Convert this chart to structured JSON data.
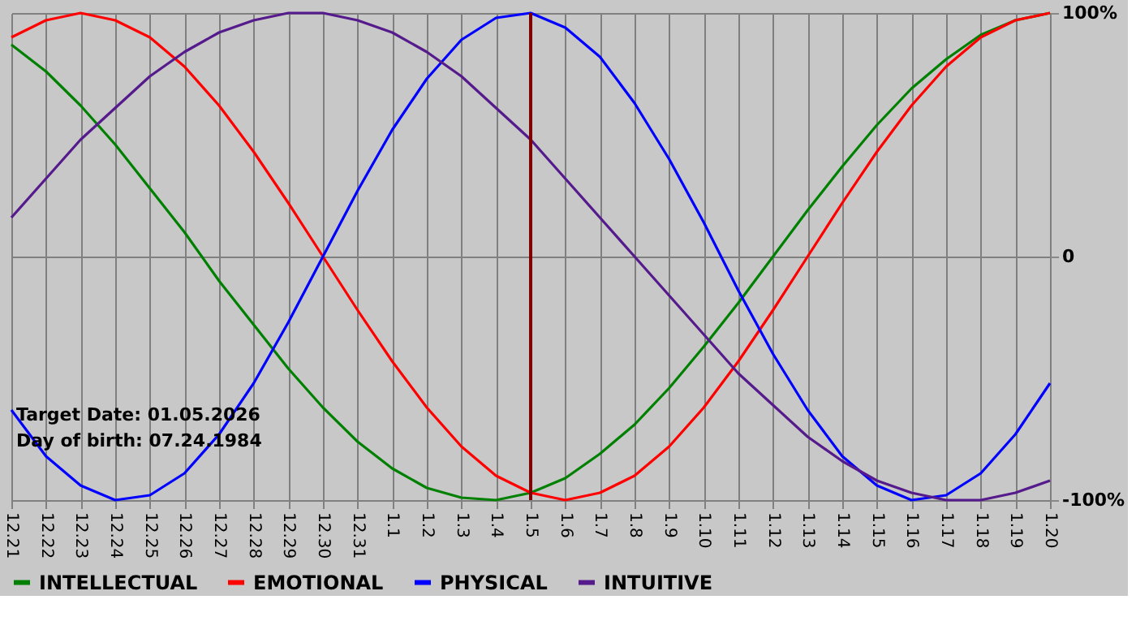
{
  "chart_data": {
    "type": "line",
    "categories": [
      "12.21",
      "12.22",
      "12.23",
      "12.24",
      "12.25",
      "12.26",
      "12.27",
      "12.28",
      "12.29",
      "12.30",
      "12.31",
      "1.1",
      "1.2",
      "1.3",
      "1.4",
      "1.5",
      "1.6",
      "1.7",
      "1.8",
      "1.9",
      "1.10",
      "1.11",
      "1.12",
      "1.13",
      "1.14",
      "1.15",
      "1.16",
      "1.17",
      "1.18",
      "1.19",
      "1.20"
    ],
    "series": [
      {
        "name": "INTELLECTUAL",
        "color": "#008000",
        "values": [
          87,
          76,
          62,
          46,
          28,
          10,
          -10,
          -28,
          -46,
          -62,
          -76,
          -87,
          -95,
          -99,
          -100,
          -97,
          -91,
          -81,
          -69,
          -54,
          -37,
          -19,
          0,
          19,
          37,
          54,
          69,
          81,
          91,
          97,
          100
        ]
      },
      {
        "name": "EMOTIONAL",
        "color": "#ff0000",
        "values": [
          90,
          97,
          100,
          97,
          90,
          78,
          62,
          43,
          22,
          0,
          -22,
          -43,
          -62,
          -78,
          -90,
          -97,
          -100,
          -97,
          -90,
          -78,
          -62,
          -43,
          -22,
          0,
          22,
          43,
          62,
          78,
          90,
          97,
          100
        ]
      },
      {
        "name": "PHYSICAL",
        "color": "#0000ff",
        "values": [
          -63,
          -82,
          -94,
          -100,
          -98,
          -89,
          -73,
          -52,
          -27,
          0,
          27,
          52,
          73,
          89,
          98,
          100,
          94,
          82,
          63,
          40,
          14,
          -14,
          -40,
          -63,
          -82,
          -94,
          -100,
          -98,
          -89,
          -73,
          -52
        ]
      },
      {
        "name": "INTUITIVE",
        "color": "#551a8b",
        "values": [
          16,
          32,
          48,
          61,
          74,
          84,
          92,
          97,
          100,
          100,
          97,
          92,
          84,
          74,
          61,
          48,
          32,
          16,
          0,
          -16,
          -32,
          -48,
          -61,
          -74,
          -84,
          -92,
          -97,
          -100,
          -100,
          -97,
          -92
        ]
      }
    ],
    "ylim": [
      -100,
      100
    ],
    "yticks": [
      {
        "value": -100,
        "label": "-100%"
      },
      0,
      {
        "value": 100,
        "label": "100%"
      }
    ],
    "ref_lines": [
      {
        "axis": "x",
        "value": "1.5",
        "color": "#800000"
      }
    ],
    "annotations": [
      "Target Date: 01.05.2026",
      "Day of birth: 07.24.1984"
    ],
    "grid": true,
    "legend": "bottom",
    "marker": "none",
    "line_style": "solid"
  }
}
